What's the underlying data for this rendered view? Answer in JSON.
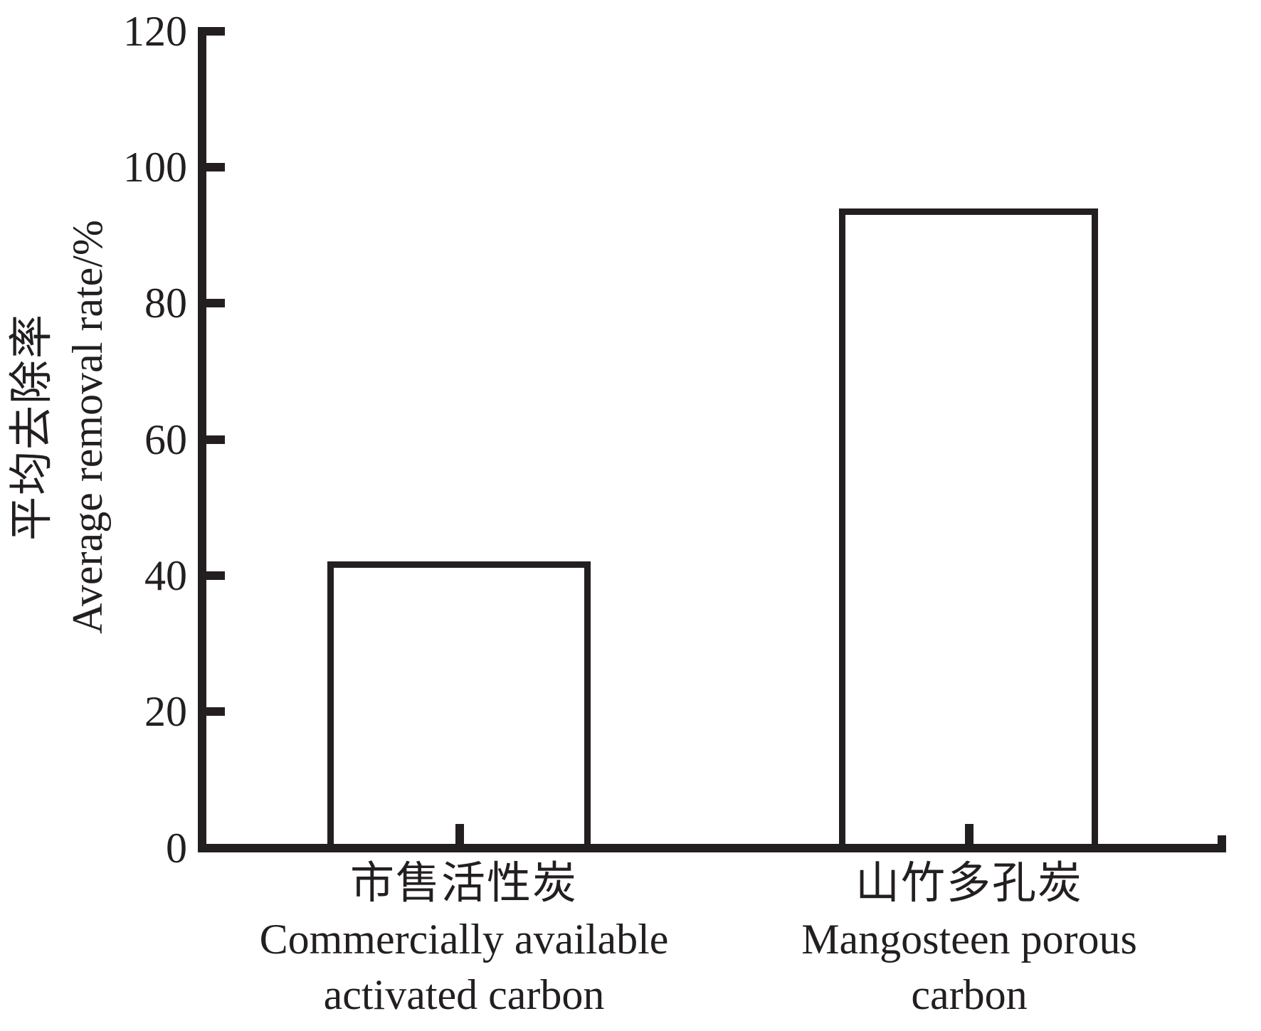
{
  "chart_data": {
    "type": "bar",
    "title": "",
    "categories": [
      "Commercially available activated carbon",
      "Mangosteen porous carbon"
    ],
    "categories_zh": [
      "市售活性炭",
      "山竹多孔炭"
    ],
    "values": [
      41.7,
      93.8
    ],
    "series": [
      {
        "name": "Average removal rate",
        "values": [
          41.7,
          93.8
        ]
      }
    ],
    "xlabel": "",
    "ylabel_zh": "平均去除率",
    "ylabel_en": "Average removal rate/%",
    "ylim": [
      0,
      120
    ],
    "yticks": [
      0,
      20,
      40,
      60,
      80,
      100,
      120
    ],
    "ytick_labels": [
      "120",
      "100",
      "80",
      "60",
      "40",
      "20",
      "0"
    ],
    "grid": false,
    "legend": null,
    "bar_fill": "#ffffff",
    "bar_border": "#231f20",
    "ink_color": "#231f20",
    "background_color": "#ffffff",
    "x_labels": [
      {
        "zh": "市售活性炭",
        "en_line1": "Commercially available",
        "en_line2": "activated carbon"
      },
      {
        "zh": "山竹多孔炭",
        "en_line1": "Mangosteen porous",
        "en_line2": "carbon"
      }
    ]
  }
}
